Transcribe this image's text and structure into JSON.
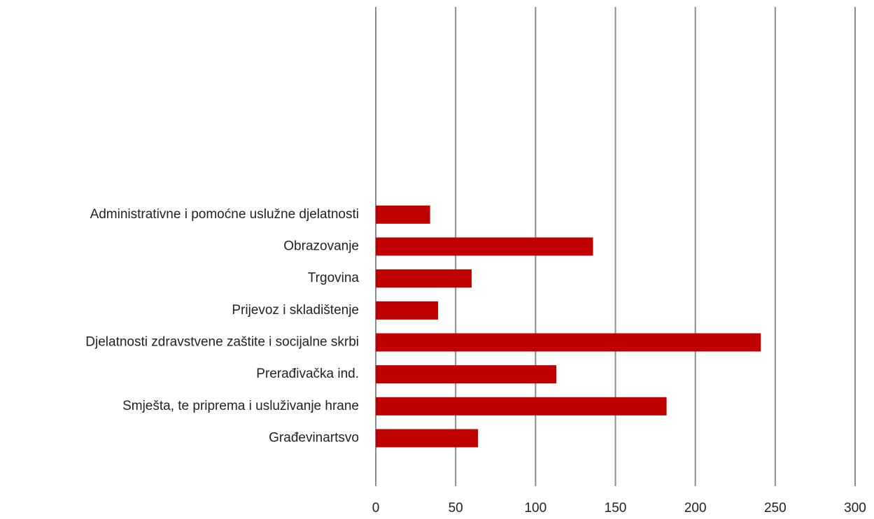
{
  "chart_data": {
    "type": "barh",
    "categories": [
      null,
      "Građevinartsvo",
      "Smješta, te priprema i usluživanje hrane",
      "Prerađivačka ind.",
      "Djelatnosti zdravstvene zaštite i socijalne skrbi",
      "Prijevoz i skladištenje",
      "Trgovina",
      "Obrazovanje",
      "Administrativne i pomoćne uslužne djelatnosti",
      null,
      null,
      null,
      null,
      null,
      null
    ],
    "values": [
      null,
      64,
      182,
      113,
      241,
      39,
      60,
      136,
      34,
      null,
      null,
      null,
      null,
      null,
      null
    ],
    "color": "#c00000",
    "xlim": [
      0,
      300
    ],
    "xticks": [
      0,
      50,
      100,
      150,
      200,
      250,
      300
    ],
    "grid": true
  }
}
